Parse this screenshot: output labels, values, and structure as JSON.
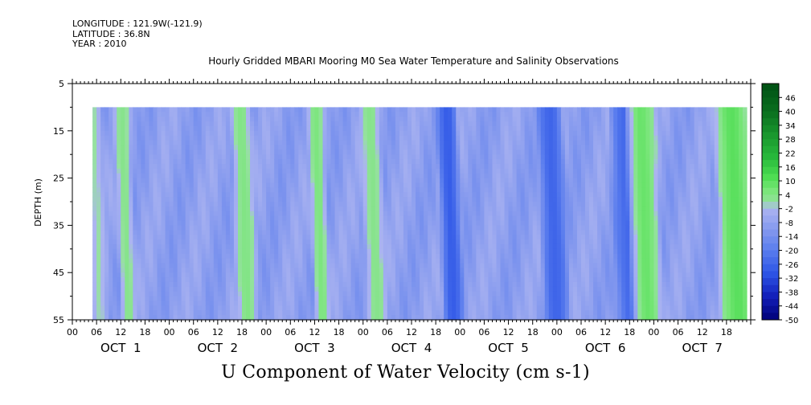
{
  "header": {
    "longitude": "LONGITUDE : 121.9W(-121.9)",
    "latitude": "LATITUDE : 36.8N",
    "year": "YEAR : 2010"
  },
  "chart_data": {
    "type": "heatmap",
    "title": "Hourly Gridded MBARI Mooring M0 Sea Water Temperature and Salinity Observations",
    "xlabel": "U Component of Water Velocity (cm s-1)",
    "ylabel": "DEPTH (m)",
    "y_ticks": [
      5,
      15,
      25,
      35,
      45,
      55
    ],
    "ylim": [
      5,
      55
    ],
    "y_inverted": true,
    "x_hour_ticks": [
      "00",
      "06",
      "12",
      "18"
    ],
    "x_days": [
      "OCT 1",
      "OCT 2",
      "OCT 3",
      "OCT 4",
      "OCT 5",
      "OCT 6",
      "OCT 7"
    ],
    "x_range_hours": [
      0,
      168
    ],
    "data_extent": {
      "start_hour": 5,
      "end_hour": 167,
      "min_depth": 10,
      "max_depth": 55
    },
    "colorbar": {
      "labels": [
        "46",
        "40",
        "34",
        "28",
        "22",
        "16",
        "10",
        "4",
        "-2",
        "-8",
        "-14",
        "-20",
        "-26",
        "-32",
        "-38",
        "-44",
        "-50"
      ],
      "min": -50,
      "max": 52,
      "step": 3
    },
    "features": [
      {
        "start_hour": 5,
        "end_hour": 7,
        "value": 0
      },
      {
        "start_hour": 12,
        "end_hour": 14,
        "value": 3
      },
      {
        "start_hour": 41,
        "end_hour": 44,
        "value": 4
      },
      {
        "start_hour": 60,
        "end_hour": 62,
        "value": 5
      },
      {
        "start_hour": 73,
        "end_hour": 76,
        "value": 3
      },
      {
        "start_hour": 92,
        "end_hour": 95,
        "value": -28
      },
      {
        "start_hour": 117,
        "end_hour": 121,
        "value": -26
      },
      {
        "start_hour": 135,
        "end_hour": 140,
        "value": -25
      },
      {
        "start_hour": 139,
        "end_hour": 144,
        "value": 8
      },
      {
        "start_hour": 161,
        "end_hour": 167,
        "value": 10
      }
    ]
  }
}
